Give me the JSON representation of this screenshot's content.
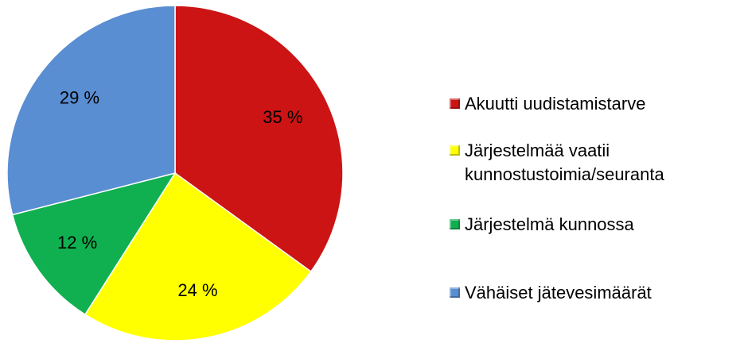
{
  "chart_data": {
    "type": "pie",
    "categories": [
      "Akuutti uudistamistarve",
      "Järjestelmää vaatii kunnostustoimia/seuranta",
      "Järjestelmä kunnossa",
      "Vähäiset jätevesimäärät"
    ],
    "values": [
      35,
      24,
      12,
      29
    ],
    "value_labels": [
      "35 %",
      "24 %",
      "12 %",
      "29 %"
    ],
    "colors": [
      "#cc1414",
      "#ffff00",
      "#10b050",
      "#5a8ed2"
    ],
    "legend": "right"
  }
}
